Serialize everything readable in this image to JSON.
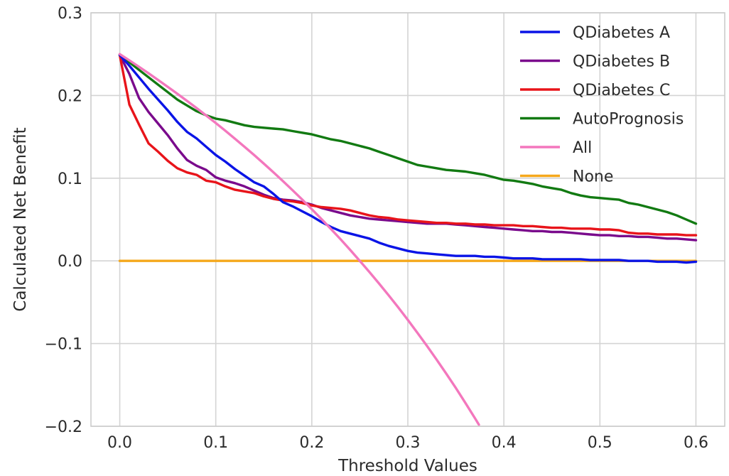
{
  "chart_data": {
    "type": "line",
    "xlabel": "Threshold Values",
    "ylabel": "Calculated Net Benefit",
    "xlim": [
      -0.03,
      0.63
    ],
    "ylim": [
      -0.2,
      0.3
    ],
    "xticks": [
      0.0,
      0.1,
      0.2,
      0.3,
      0.4,
      0.5,
      0.6
    ],
    "xtick_labels": [
      "0.0",
      "0.1",
      "0.2",
      "0.3",
      "0.4",
      "0.5",
      "0.6"
    ],
    "yticks": [
      -0.2,
      -0.1,
      0.0,
      0.1,
      0.2,
      0.3
    ],
    "ytick_labels": [
      "−0.2",
      "−0.1",
      "0.0",
      "0.1",
      "0.2",
      "0.3"
    ],
    "grid": true,
    "legend_position": "top-right",
    "series": [
      {
        "name": "QDiabetes A",
        "color": "#0a14e6",
        "x": [
          0,
          0.01,
          0.02,
          0.03,
          0.04,
          0.05,
          0.06,
          0.07,
          0.08,
          0.09,
          0.1,
          0.11,
          0.12,
          0.13,
          0.14,
          0.15,
          0.16,
          0.17,
          0.18,
          0.19,
          0.2,
          0.21,
          0.22,
          0.23,
          0.24,
          0.25,
          0.26,
          0.27,
          0.28,
          0.29,
          0.3,
          0.31,
          0.32,
          0.33,
          0.34,
          0.35,
          0.36,
          0.37,
          0.38,
          0.39,
          0.4,
          0.41,
          0.42,
          0.43,
          0.44,
          0.45,
          0.46,
          0.47,
          0.48,
          0.49,
          0.5,
          0.51,
          0.52,
          0.53,
          0.54,
          0.55,
          0.56,
          0.57,
          0.58,
          0.59,
          0.6
        ],
        "y": [
          0.249,
          0.236,
          0.222,
          0.208,
          0.195,
          0.182,
          0.168,
          0.156,
          0.148,
          0.138,
          0.128,
          0.12,
          0.111,
          0.103,
          0.095,
          0.09,
          0.081,
          0.071,
          0.066,
          0.06,
          0.054,
          0.047,
          0.041,
          0.036,
          0.033,
          0.03,
          0.027,
          0.022,
          0.018,
          0.015,
          0.012,
          0.01,
          0.009,
          0.008,
          0.007,
          0.006,
          0.006,
          0.006,
          0.005,
          0.005,
          0.004,
          0.003,
          0.003,
          0.003,
          0.002,
          0.002,
          0.002,
          0.002,
          0.002,
          0.001,
          0.001,
          0.001,
          0.001,
          0.0,
          0.0,
          0.0,
          -0.001,
          -0.001,
          -0.001,
          -0.002,
          -0.001
        ]
      },
      {
        "name": "QDiabetes B",
        "color": "#7a0a8c",
        "x": [
          0,
          0.01,
          0.02,
          0.03,
          0.04,
          0.05,
          0.06,
          0.07,
          0.08,
          0.09,
          0.1,
          0.11,
          0.12,
          0.13,
          0.14,
          0.15,
          0.16,
          0.17,
          0.18,
          0.19,
          0.2,
          0.21,
          0.22,
          0.23,
          0.24,
          0.25,
          0.26,
          0.27,
          0.28,
          0.29,
          0.3,
          0.31,
          0.32,
          0.33,
          0.34,
          0.35,
          0.36,
          0.37,
          0.38,
          0.39,
          0.4,
          0.41,
          0.42,
          0.43,
          0.44,
          0.45,
          0.46,
          0.47,
          0.48,
          0.49,
          0.5,
          0.51,
          0.52,
          0.53,
          0.54,
          0.55,
          0.56,
          0.57,
          0.58,
          0.59,
          0.6
        ],
        "y": [
          0.249,
          0.226,
          0.197,
          0.18,
          0.166,
          0.152,
          0.136,
          0.122,
          0.115,
          0.11,
          0.101,
          0.097,
          0.094,
          0.09,
          0.085,
          0.08,
          0.076,
          0.074,
          0.073,
          0.071,
          0.068,
          0.064,
          0.061,
          0.058,
          0.055,
          0.053,
          0.051,
          0.05,
          0.049,
          0.048,
          0.047,
          0.046,
          0.045,
          0.045,
          0.045,
          0.044,
          0.043,
          0.042,
          0.041,
          0.04,
          0.039,
          0.038,
          0.037,
          0.036,
          0.036,
          0.035,
          0.035,
          0.034,
          0.033,
          0.032,
          0.031,
          0.031,
          0.03,
          0.03,
          0.029,
          0.029,
          0.028,
          0.027,
          0.027,
          0.026,
          0.025
        ]
      },
      {
        "name": "QDiabetes C",
        "color": "#e8141a",
        "x": [
          0,
          0.01,
          0.02,
          0.03,
          0.04,
          0.05,
          0.06,
          0.07,
          0.08,
          0.09,
          0.1,
          0.11,
          0.12,
          0.13,
          0.14,
          0.15,
          0.16,
          0.17,
          0.18,
          0.19,
          0.2,
          0.21,
          0.22,
          0.23,
          0.24,
          0.25,
          0.26,
          0.27,
          0.28,
          0.29,
          0.3,
          0.31,
          0.32,
          0.33,
          0.34,
          0.35,
          0.36,
          0.37,
          0.38,
          0.39,
          0.4,
          0.41,
          0.42,
          0.43,
          0.44,
          0.45,
          0.46,
          0.47,
          0.48,
          0.49,
          0.5,
          0.51,
          0.52,
          0.53,
          0.54,
          0.55,
          0.56,
          0.57,
          0.58,
          0.59,
          0.6
        ],
        "y": [
          0.249,
          0.189,
          0.165,
          0.142,
          0.132,
          0.121,
          0.112,
          0.107,
          0.104,
          0.097,
          0.095,
          0.09,
          0.086,
          0.084,
          0.082,
          0.078,
          0.075,
          0.073,
          0.072,
          0.07,
          0.067,
          0.065,
          0.064,
          0.063,
          0.061,
          0.058,
          0.055,
          0.053,
          0.052,
          0.05,
          0.049,
          0.048,
          0.047,
          0.046,
          0.046,
          0.045,
          0.045,
          0.044,
          0.044,
          0.043,
          0.043,
          0.043,
          0.042,
          0.042,
          0.041,
          0.04,
          0.04,
          0.039,
          0.039,
          0.039,
          0.038,
          0.038,
          0.037,
          0.034,
          0.033,
          0.033,
          0.032,
          0.032,
          0.032,
          0.031,
          0.031
        ]
      },
      {
        "name": "AutoPrognosis",
        "color": "#127a12",
        "x": [
          0,
          0.01,
          0.02,
          0.03,
          0.04,
          0.05,
          0.06,
          0.07,
          0.08,
          0.09,
          0.1,
          0.11,
          0.12,
          0.13,
          0.14,
          0.15,
          0.16,
          0.17,
          0.18,
          0.19,
          0.2,
          0.21,
          0.22,
          0.23,
          0.24,
          0.25,
          0.26,
          0.27,
          0.28,
          0.29,
          0.3,
          0.31,
          0.32,
          0.33,
          0.34,
          0.35,
          0.36,
          0.37,
          0.38,
          0.39,
          0.4,
          0.41,
          0.42,
          0.43,
          0.44,
          0.45,
          0.46,
          0.47,
          0.48,
          0.49,
          0.5,
          0.51,
          0.52,
          0.53,
          0.54,
          0.55,
          0.56,
          0.57,
          0.58,
          0.59,
          0.6
        ],
        "y": [
          0.249,
          0.24,
          0.231,
          0.222,
          0.213,
          0.204,
          0.195,
          0.188,
          0.181,
          0.176,
          0.172,
          0.17,
          0.167,
          0.164,
          0.162,
          0.161,
          0.16,
          0.159,
          0.157,
          0.155,
          0.153,
          0.15,
          0.147,
          0.145,
          0.142,
          0.139,
          0.136,
          0.132,
          0.128,
          0.124,
          0.12,
          0.116,
          0.114,
          0.112,
          0.11,
          0.109,
          0.108,
          0.106,
          0.104,
          0.101,
          0.098,
          0.097,
          0.095,
          0.093,
          0.09,
          0.088,
          0.086,
          0.082,
          0.079,
          0.077,
          0.076,
          0.075,
          0.074,
          0.07,
          0.068,
          0.065,
          0.062,
          0.059,
          0.055,
          0.05,
          0.045
        ]
      },
      {
        "name": "All",
        "color": "#f377bd",
        "x": [
          0,
          0.01,
          0.02,
          0.03,
          0.04,
          0.05,
          0.06,
          0.07,
          0.08,
          0.09,
          0.1,
          0.11,
          0.12,
          0.13,
          0.14,
          0.15,
          0.16,
          0.17,
          0.18,
          0.19,
          0.2,
          0.21,
          0.22,
          0.23,
          0.24,
          0.25,
          0.26,
          0.27,
          0.28,
          0.29,
          0.3,
          0.31,
          0.32,
          0.33,
          0.34,
          0.35,
          0.36,
          0.37,
          0.374
        ],
        "y": [
          0.25,
          0.2424,
          0.2347,
          0.2268,
          0.2187,
          0.2105,
          0.2021,
          0.1935,
          0.1848,
          0.1758,
          0.1667,
          0.1573,
          0.1477,
          0.1379,
          0.1279,
          0.1176,
          0.1071,
          0.0964,
          0.0854,
          0.0741,
          0.0625,
          0.0506,
          0.0385,
          0.026,
          0.0132,
          0.0,
          -0.0135,
          -0.0274,
          -0.0417,
          -0.0563,
          -0.0714,
          -0.087,
          -0.1029,
          -0.1194,
          -0.1364,
          -0.1538,
          -0.1719,
          -0.1905,
          -0.1981
        ]
      },
      {
        "name": "None",
        "color": "#f5a81c",
        "x": [
          0,
          0.6
        ],
        "y": [
          0.0,
          0.0
        ]
      }
    ]
  }
}
